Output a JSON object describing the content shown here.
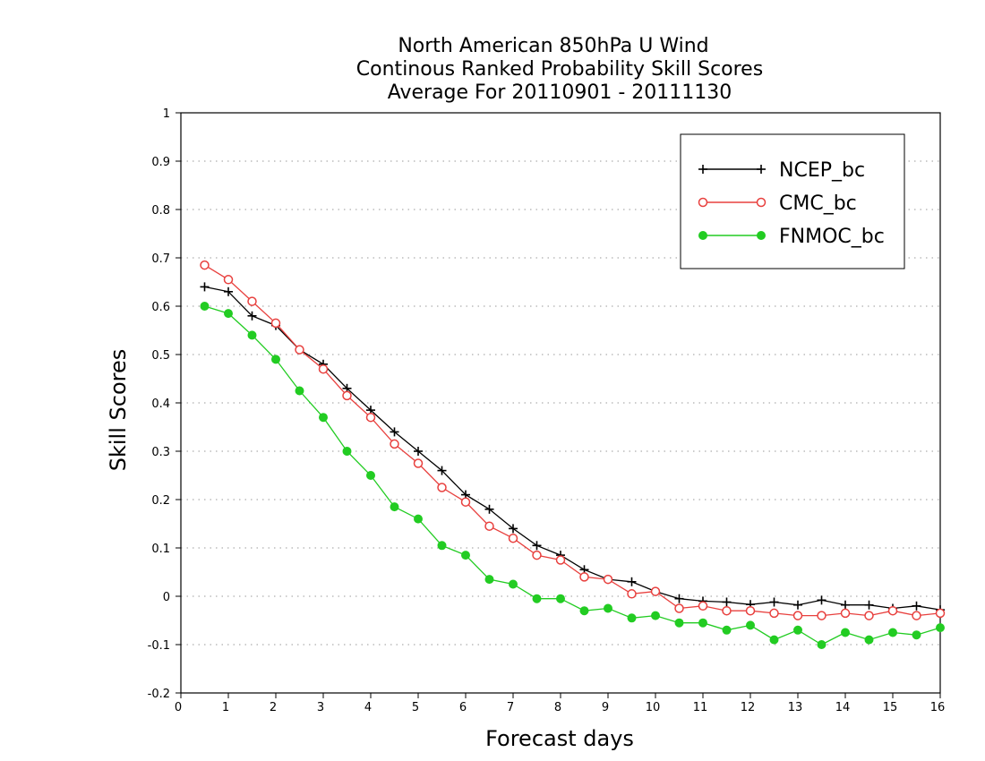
{
  "chart_data": {
    "type": "line",
    "title_lines": [
      "North American 850hPa U Wind",
      "Continous Ranked Probability Skill Scores",
      "Average For 20110901 - 20111130"
    ],
    "xlabel": "Forecast days",
    "ylabel": "Skill Scores",
    "xlim": [
      0,
      16
    ],
    "ylim": [
      -0.2,
      1
    ],
    "x_ticks": [
      0,
      1,
      2,
      3,
      4,
      5,
      6,
      7,
      8,
      9,
      10,
      11,
      12,
      13,
      14,
      15,
      16
    ],
    "y_ticks": [
      -0.2,
      -0.1,
      0,
      0.1,
      0.2,
      0.3,
      0.4,
      0.5,
      0.6,
      0.7,
      0.8,
      0.9,
      1
    ],
    "y_tick_labels": [
      "-0.2",
      "-0.1",
      "0",
      "0.1",
      "0.2",
      "0.3",
      "0.4",
      "0.5",
      "0.6",
      "0.7",
      "0.8",
      "0.9",
      "1"
    ],
    "grid": "horizontal dotted",
    "legend_position": "top-right",
    "x": [
      0.5,
      1,
      1.5,
      2,
      2.5,
      3,
      3.5,
      4,
      4.5,
      5,
      5.5,
      6,
      6.5,
      7,
      7.5,
      8,
      8.5,
      9,
      9.5,
      10,
      10.5,
      11,
      11.5,
      12,
      12.5,
      13,
      13.5,
      14,
      14.5,
      15,
      15.5,
      16
    ],
    "series": [
      {
        "name": "NCEP_bc",
        "color": "#000000",
        "marker": "plus",
        "values": [
          0.64,
          0.63,
          0.58,
          0.56,
          0.51,
          0.48,
          0.43,
          0.385,
          0.34,
          0.3,
          0.26,
          0.21,
          0.18,
          0.14,
          0.105,
          0.085,
          0.055,
          0.035,
          0.03,
          0.01,
          -0.005,
          -0.01,
          -0.012,
          -0.017,
          -0.012,
          -0.018,
          -0.008,
          -0.018,
          -0.018,
          -0.025,
          -0.02,
          -0.028
        ]
      },
      {
        "name": "CMC_bc",
        "color": "#e8403e",
        "marker": "open-circle",
        "values": [
          0.685,
          0.655,
          0.61,
          0.565,
          0.51,
          0.47,
          0.415,
          0.37,
          0.315,
          0.275,
          0.225,
          0.195,
          0.145,
          0.12,
          0.085,
          0.075,
          0.04,
          0.035,
          0.005,
          0.01,
          -0.025,
          -0.02,
          -0.03,
          -0.03,
          -0.035,
          -0.04,
          -0.04,
          -0.035,
          -0.04,
          -0.03,
          -0.04,
          -0.035
        ]
      },
      {
        "name": "FNMOC_bc",
        "color": "#22cc22",
        "marker": "filled-circle",
        "values": [
          0.6,
          0.585,
          0.54,
          0.49,
          0.425,
          0.37,
          0.3,
          0.25,
          0.185,
          0.16,
          0.105,
          0.085,
          0.035,
          0.025,
          -0.005,
          -0.005,
          -0.03,
          -0.025,
          -0.045,
          -0.04,
          -0.055,
          -0.055,
          -0.07,
          -0.06,
          -0.09,
          -0.07,
          -0.1,
          -0.075,
          -0.09,
          -0.075,
          -0.08,
          -0.065
        ]
      }
    ]
  }
}
